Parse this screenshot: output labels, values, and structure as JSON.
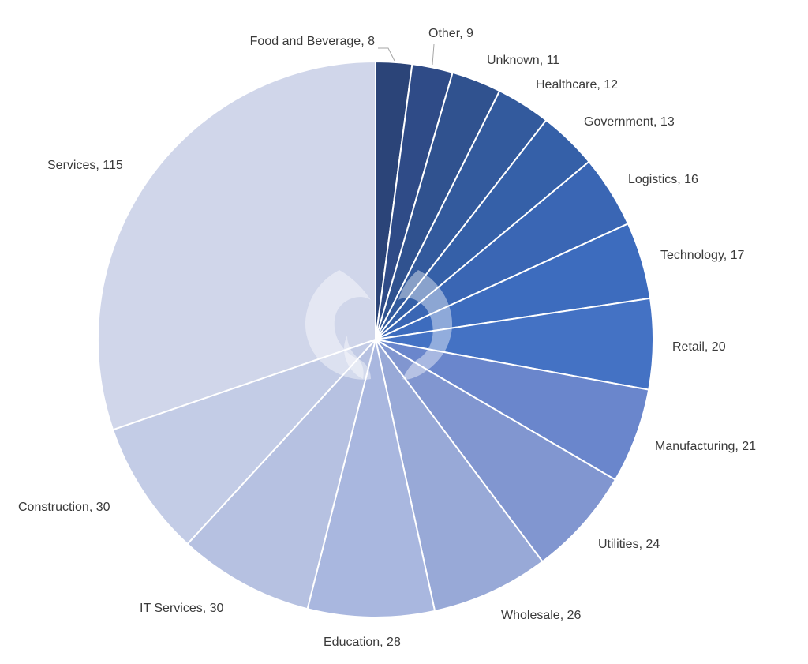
{
  "chart_data": {
    "type": "pie",
    "title": "",
    "slices": [
      {
        "label": "Food and Beverage",
        "value": 8,
        "color": "#2b4478"
      },
      {
        "label": "Other",
        "value": 9,
        "color": "#2f4b87"
      },
      {
        "label": "Unknown",
        "value": 11,
        "color": "#30528f"
      },
      {
        "label": "Healthcare",
        "value": 12,
        "color": "#335a9d"
      },
      {
        "label": "Government",
        "value": 13,
        "color": "#3560a8"
      },
      {
        "label": "Logistics",
        "value": 16,
        "color": "#3a66b4"
      },
      {
        "label": "Technology",
        "value": 17,
        "color": "#3d6cbe"
      },
      {
        "label": "Retail",
        "value": 20,
        "color": "#4472c4"
      },
      {
        "label": "Manufacturing",
        "value": 21,
        "color": "#6a86cc"
      },
      {
        "label": "Utilities",
        "value": 24,
        "color": "#8196d0"
      },
      {
        "label": "Wholesale",
        "value": 26,
        "color": "#98a9d7"
      },
      {
        "label": "Education",
        "value": 28,
        "color": "#a9b7df"
      },
      {
        "label": "IT Services",
        "value": 30,
        "color": "#b6c1e1"
      },
      {
        "label": "Construction",
        "value": 30,
        "color": "#c3cce6"
      },
      {
        "label": "Services",
        "value": 115,
        "color": "#d0d6ea"
      }
    ],
    "label_format": "{label}, {value}",
    "legend": "none",
    "start_angle": "12 o'clock",
    "direction": "clockwise"
  }
}
